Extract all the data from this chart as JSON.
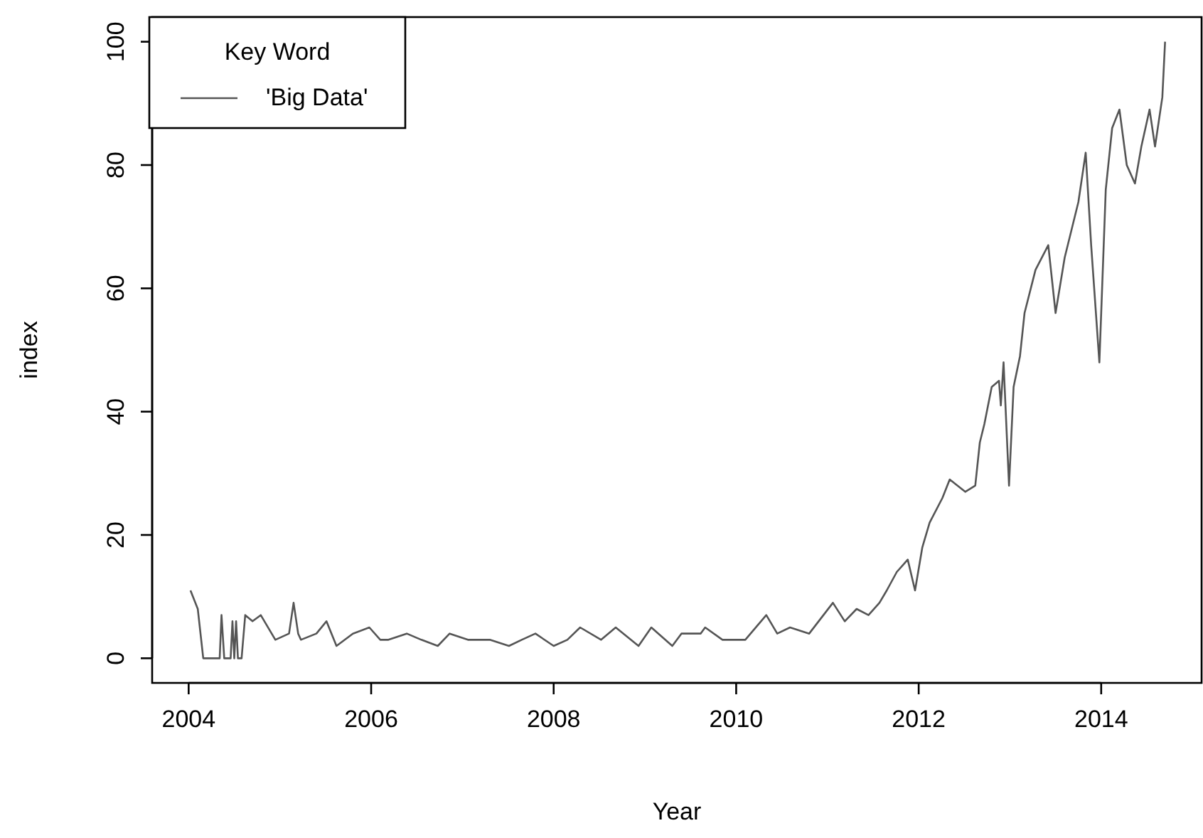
{
  "chart_data": {
    "type": "line",
    "xlabel": "Year",
    "ylabel": "index",
    "legend_title": "Key Word",
    "legend": "top left",
    "grid": false,
    "line_style": "solid",
    "xlim": [
      2003.6,
      2015.1
    ],
    "ylim": [
      -4,
      104
    ],
    "xticks": [
      2004,
      2006,
      2008,
      2010,
      2012,
      2014
    ],
    "yticks": [
      0,
      20,
      40,
      60,
      80,
      100
    ],
    "x": [
      2004.02,
      2004.1,
      2004.16,
      2004.34,
      2004.36,
      2004.39,
      2004.46,
      2004.48,
      2004.5,
      2004.52,
      2004.54,
      2004.58,
      2004.62,
      2004.7,
      2004.79,
      2004.95,
      2005.1,
      2005.15,
      2005.2,
      2005.23,
      2005.4,
      2005.51,
      2005.62,
      2005.8,
      2005.98,
      2006.1,
      2006.19,
      2006.39,
      2006.55,
      2006.73,
      2006.86,
      2007.06,
      2007.3,
      2007.51,
      2007.65,
      2007.8,
      2008.0,
      2008.15,
      2008.29,
      2008.52,
      2008.68,
      2008.93,
      2009.07,
      2009.3,
      2009.4,
      2009.61,
      2009.66,
      2009.85,
      2010.1,
      2010.33,
      2010.45,
      2010.59,
      2010.8,
      2011.06,
      2011.19,
      2011.32,
      2011.45,
      2011.57,
      2011.65,
      2011.76,
      2011.88,
      2011.96,
      2012.04,
      2012.12,
      2012.26,
      2012.34,
      2012.51,
      2012.62,
      2012.67,
      2012.72,
      2012.8,
      2012.88,
      2012.9,
      2012.93,
      2012.99,
      2013.04,
      2013.11,
      2013.16,
      2013.28,
      2013.42,
      2013.5,
      2013.6,
      2013.75,
      2013.83,
      2013.89,
      2013.98,
      2014.05,
      2014.12,
      2014.2,
      2014.28,
      2014.37,
      2014.44,
      2014.53,
      2014.59,
      2014.67,
      2014.7
    ],
    "series": [
      {
        "name": "'Big Data'",
        "color": "#555555",
        "values": [
          11,
          8,
          0,
          0,
          7,
          0,
          0,
          6,
          0,
          6,
          0,
          0,
          7,
          6,
          7,
          3,
          4,
          9,
          4,
          3,
          4,
          6,
          2,
          4,
          5,
          3,
          3,
          4,
          3,
          2,
          4,
          3,
          3,
          2,
          3,
          4,
          2,
          3,
          5,
          3,
          5,
          2,
          5,
          2,
          4,
          4,
          5,
          3,
          3,
          7,
          4,
          5,
          4,
          9,
          6,
          8,
          7,
          9,
          11,
          14,
          16,
          11,
          18,
          22,
          26,
          29,
          27,
          28,
          35,
          38,
          44,
          45,
          41,
          48,
          28,
          44,
          49,
          56,
          63,
          67,
          56,
          65,
          74,
          82,
          67,
          48,
          76,
          86,
          89,
          80,
          77,
          83,
          89,
          83,
          91,
          100
        ]
      }
    ]
  }
}
